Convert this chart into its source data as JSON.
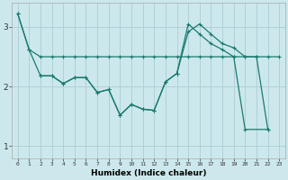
{
  "title": "",
  "xlabel": "Humidex (Indice chaleur)",
  "background_color": "#cce8ec",
  "grid_color": "#b0d0d8",
  "line_color": "#1a7a6e",
  "xlim": [
    -0.5,
    23.5
  ],
  "ylim": [
    0.8,
    3.4
  ],
  "yticks": [
    1,
    2,
    3
  ],
  "xticks": [
    0,
    1,
    2,
    3,
    4,
    5,
    6,
    7,
    8,
    9,
    10,
    11,
    12,
    13,
    14,
    15,
    16,
    17,
    18,
    19,
    20,
    21,
    22,
    23
  ],
  "line1_x": [
    0,
    1,
    2,
    3,
    4,
    5,
    6,
    7,
    8,
    9,
    10,
    11,
    12,
    13,
    14,
    15,
    16,
    17,
    18,
    19,
    20,
    21,
    22,
    23
  ],
  "line1_y": [
    3.22,
    2.62,
    2.5,
    2.5,
    2.5,
    2.5,
    2.5,
    2.5,
    2.5,
    2.5,
    2.5,
    2.5,
    2.5,
    2.5,
    2.5,
    2.5,
    2.5,
    2.5,
    2.5,
    2.5,
    2.5,
    2.5,
    2.5,
    2.5
  ],
  "line2_x": [
    0,
    1,
    2,
    3,
    4,
    5,
    6,
    7,
    8,
    9,
    10,
    11,
    12,
    13,
    14,
    15,
    16,
    17,
    18,
    19,
    20,
    21,
    22
  ],
  "line2_y": [
    3.22,
    2.62,
    2.18,
    2.18,
    2.05,
    2.15,
    2.15,
    1.9,
    1.95,
    1.52,
    1.7,
    1.62,
    1.6,
    2.08,
    2.22,
    2.92,
    3.05,
    2.88,
    2.72,
    2.65,
    2.5,
    2.5,
    1.28
  ],
  "line3_x": [
    2,
    3,
    4,
    5,
    6,
    7,
    8,
    9,
    10,
    11,
    12,
    13,
    14,
    15,
    16,
    17,
    18,
    19,
    20,
    22
  ],
  "line3_y": [
    2.18,
    2.18,
    2.05,
    2.15,
    2.15,
    1.9,
    1.95,
    1.52,
    1.7,
    1.62,
    1.6,
    2.08,
    2.22,
    3.05,
    2.88,
    2.72,
    2.62,
    2.5,
    1.28,
    1.28
  ]
}
